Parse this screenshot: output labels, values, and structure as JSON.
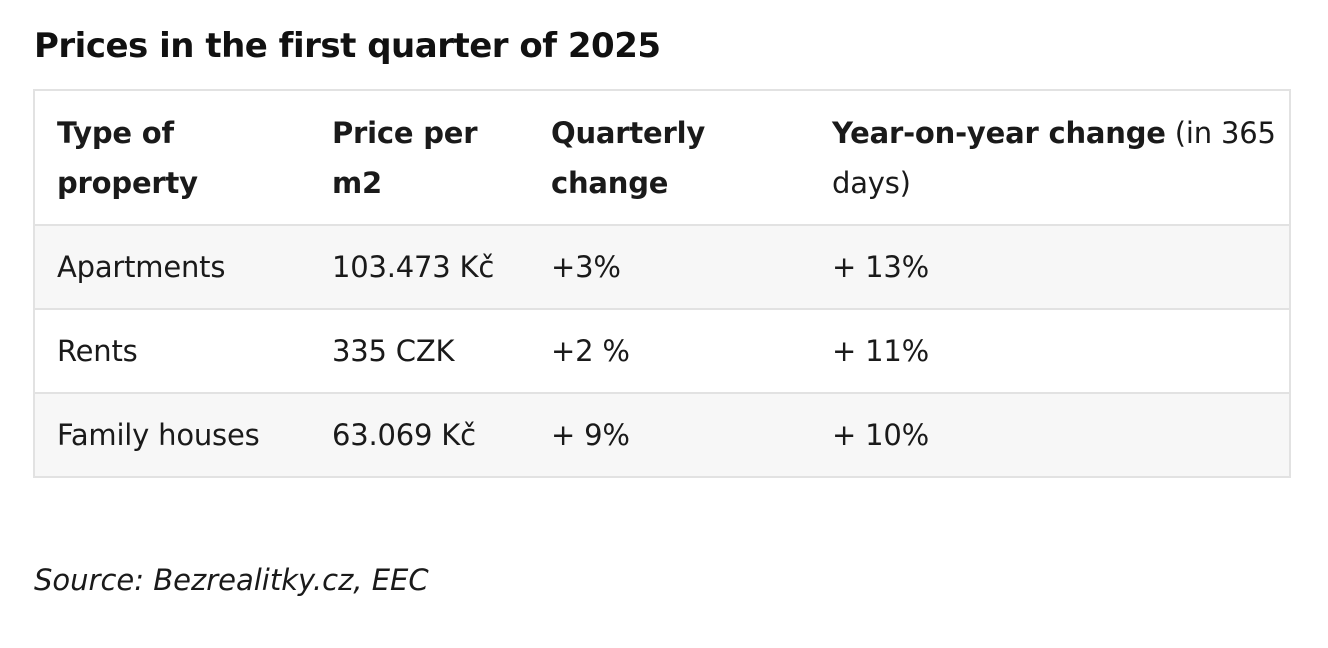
{
  "title": "Prices in the first quarter of 2025",
  "table": {
    "headers": [
      {
        "bold": "Type of property",
        "light": ""
      },
      {
        "bold": "Price per m2",
        "light": ""
      },
      {
        "bold": "Quarterly change",
        "light": ""
      },
      {
        "bold": "Year-on-year change",
        "light": " (in 365 days)"
      }
    ],
    "rows": [
      [
        "Apartments",
        "103.473 Kč",
        "+3%",
        "+ 13%"
      ],
      [
        "Rents",
        "335 CZK",
        "+2 %",
        "+ 11%"
      ],
      [
        "Family houses",
        "63.069 Kč",
        "+ 9%",
        "+ 10%"
      ]
    ]
  },
  "source": "Source: Bezrealitky.cz, EEC"
}
